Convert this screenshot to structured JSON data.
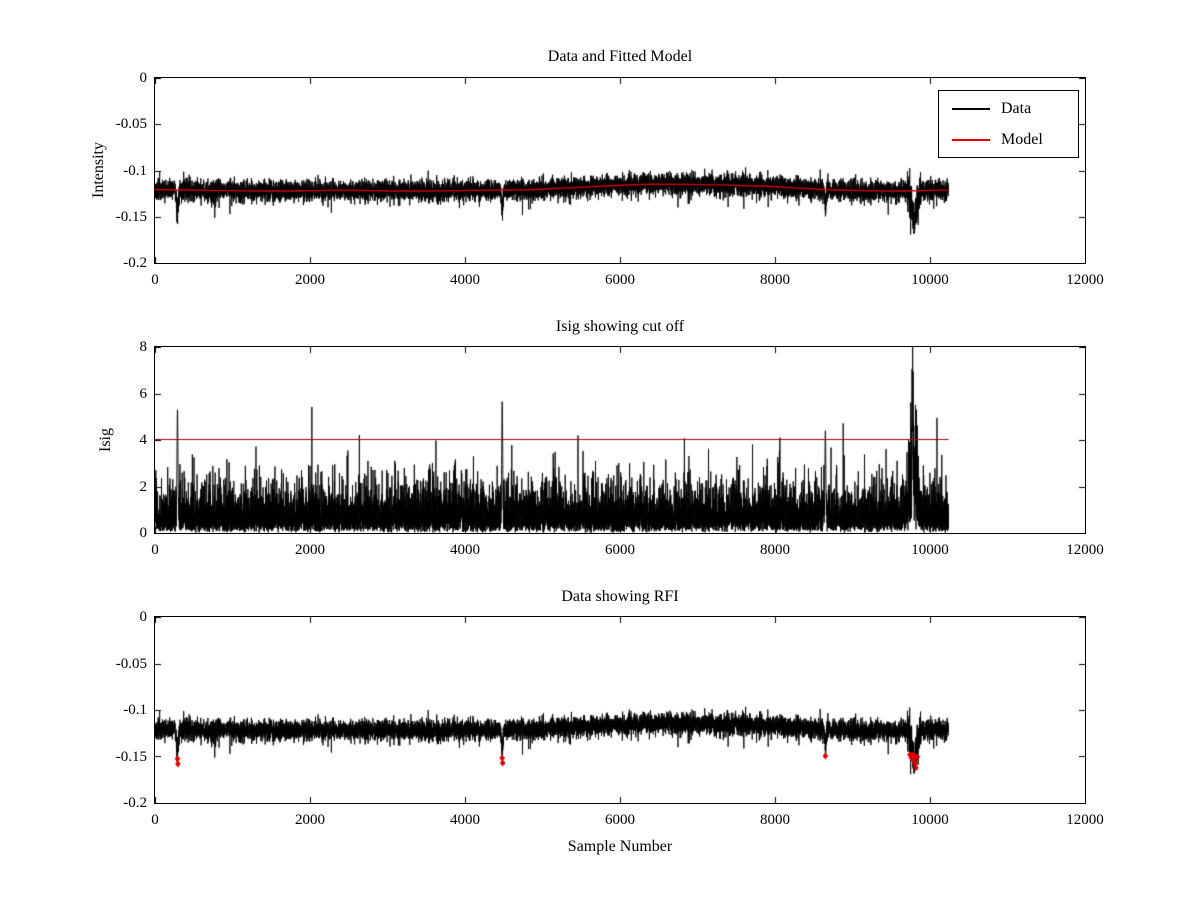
{
  "figure": {
    "background": "#ffffff",
    "axis_color": "#000000",
    "text_color": "#000000"
  },
  "chart_data": [
    {
      "type": "line",
      "title": "Data and Fitted Model",
      "xlabel": "",
      "ylabel": "Intensity",
      "xlim": [
        0,
        12000
      ],
      "ylim": [
        -0.2,
        0
      ],
      "grid": false,
      "xticks": [
        {
          "v": 0,
          "label": "0"
        },
        {
          "v": 2000,
          "label": "2000"
        },
        {
          "v": 4000,
          "label": "4000"
        },
        {
          "v": 6000,
          "label": "6000"
        },
        {
          "v": 8000,
          "label": "8000"
        },
        {
          "v": 10000,
          "label": "10000"
        },
        {
          "v": 12000,
          "label": "12000"
        }
      ],
      "yticks": [
        {
          "v": 0,
          "label": "0"
        },
        {
          "v": -0.05,
          "label": "-0.05"
        },
        {
          "v": -0.1,
          "label": "-0.1"
        },
        {
          "v": -0.15,
          "label": "-0.15"
        },
        {
          "v": -0.2,
          "label": "-0.2"
        }
      ],
      "legend": {
        "position": "top-right",
        "entries": [
          {
            "label": "Data",
            "color": "#000000"
          },
          {
            "label": "Model",
            "color": "#dd0000"
          }
        ]
      },
      "series": [
        {
          "name": "Data",
          "style": "noisy-line",
          "color": "#000000",
          "n_samples": 10240,
          "noise_std": 0.0055,
          "dips": [
            [
              290,
              -0.036,
              10
            ],
            [
              4480,
              -0.033,
              9
            ],
            [
              8650,
              -0.026,
              8
            ],
            [
              9795,
              -0.038,
              35
            ]
          ]
        },
        {
          "name": "Model",
          "style": "smooth-line",
          "color": "#dd0000",
          "control_points": [
            [
              0,
              -0.1205
            ],
            [
              800,
              -0.1218
            ],
            [
              1600,
              -0.1222
            ],
            [
              2400,
              -0.1215
            ],
            [
              3200,
              -0.1222
            ],
            [
              4000,
              -0.1218
            ],
            [
              4800,
              -0.1208
            ],
            [
              5400,
              -0.1185
            ],
            [
              6000,
              -0.116
            ],
            [
              6400,
              -0.1147
            ],
            [
              6900,
              -0.115
            ],
            [
              7400,
              -0.1158
            ],
            [
              7900,
              -0.117
            ],
            [
              8300,
              -0.119
            ],
            [
              8700,
              -0.1208
            ],
            [
              9100,
              -0.1218
            ],
            [
              9600,
              -0.1222
            ],
            [
              10240,
              -0.1212
            ]
          ]
        }
      ]
    },
    {
      "type": "line",
      "title": "Isig showing cut off",
      "xlabel": "",
      "ylabel": "Isig",
      "xlim": [
        0,
        12000
      ],
      "ylim": [
        0,
        8
      ],
      "grid": false,
      "xticks": [
        {
          "v": 0,
          "label": "0"
        },
        {
          "v": 2000,
          "label": "2000"
        },
        {
          "v": 4000,
          "label": "4000"
        },
        {
          "v": 6000,
          "label": "6000"
        },
        {
          "v": 8000,
          "label": "8000"
        },
        {
          "v": 10000,
          "label": "10000"
        },
        {
          "v": 12000,
          "label": "12000"
        }
      ],
      "yticks": [
        {
          "v": 8,
          "label": "8"
        },
        {
          "v": 6,
          "label": "6"
        },
        {
          "v": 4,
          "label": "4"
        },
        {
          "v": 2,
          "label": "2"
        },
        {
          "v": 0,
          "label": "0"
        }
      ],
      "cutoff": {
        "value": 4.05,
        "color": "#aa0000"
      },
      "series": [
        {
          "name": "Isig",
          "style": "noisy-line",
          "color": "#000000",
          "n_samples": 10240,
          "scale": 0.4,
          "spikes": [
            [
              290,
              5.3
            ],
            [
              4480,
              5.65
            ],
            [
              8650,
              4.4
            ],
            [
              9775,
              6.3
            ]
          ],
          "burst": {
            "center": 9785,
            "width": 38,
            "gain": 2.2
          }
        }
      ]
    },
    {
      "type": "line",
      "title": "Data showing RFI",
      "xlabel": "Sample Number",
      "ylabel": "",
      "xlim": [
        0,
        12000
      ],
      "ylim": [
        -0.2,
        0
      ],
      "grid": false,
      "xticks": [
        {
          "v": 0,
          "label": "0"
        },
        {
          "v": 2000,
          "label": "2000"
        },
        {
          "v": 4000,
          "label": "4000"
        },
        {
          "v": 6000,
          "label": "6000"
        },
        {
          "v": 8000,
          "label": "8000"
        },
        {
          "v": 10000,
          "label": "10000"
        },
        {
          "v": 12000,
          "label": "12000"
        }
      ],
      "yticks": [
        {
          "v": 0,
          "label": "0"
        },
        {
          "v": -0.05,
          "label": "-0.05"
        },
        {
          "v": -0.1,
          "label": "-0.1"
        },
        {
          "v": -0.15,
          "label": "-0.15"
        },
        {
          "v": -0.2,
          "label": "-0.2"
        }
      ],
      "series": [
        {
          "name": "Data",
          "style": "noisy-line",
          "color": "#000000",
          "note": "same data as top subplot"
        }
      ],
      "rfi_markers": {
        "color": "#dd0000",
        "marker": "diamond",
        "points": [
          [
            290,
            -0.1525
          ],
          [
            296,
            -0.158
          ],
          [
            4480,
            -0.1515
          ],
          [
            4486,
            -0.157
          ],
          [
            8650,
            -0.1495
          ],
          [
            9740,
            -0.148
          ],
          [
            9762,
            -0.1515
          ],
          [
            9778,
            -0.1485
          ],
          [
            9792,
            -0.154
          ],
          [
            9803,
            -0.1495
          ],
          [
            9812,
            -0.158
          ],
          [
            9818,
            -0.162
          ],
          [
            9838,
            -0.1505
          ]
        ]
      }
    }
  ]
}
